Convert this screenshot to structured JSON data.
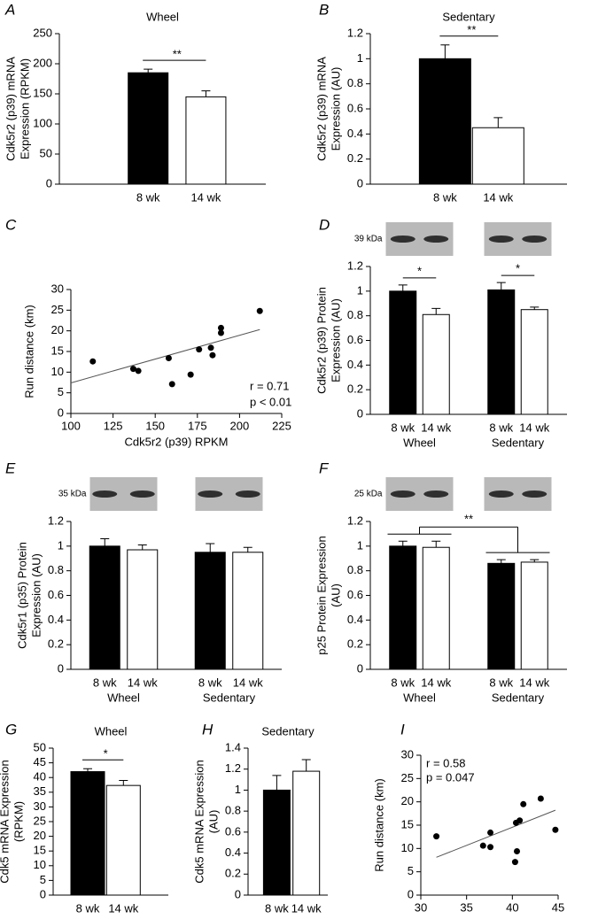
{
  "chart_data": [
    {
      "type": "bar",
      "panel": "A",
      "title": "Wheel",
      "ylabel": [
        "Cdk5r2 (p39) mRNA",
        "Expression (RPKM)"
      ],
      "categories": [
        "8 wk",
        "14 wk"
      ],
      "values": [
        185,
        145
      ],
      "errors": [
        6,
        10
      ],
      "colors": [
        "#000000",
        "#ffffff"
      ],
      "ylim": [
        0,
        250
      ],
      "yticks": [
        0,
        50,
        100,
        150,
        200,
        250
      ],
      "significance": "**"
    },
    {
      "type": "bar",
      "panel": "B",
      "title": "Sedentary",
      "ylabel": [
        "Cdk5r2 (p39) mRNA",
        "Expression (AU)"
      ],
      "categories": [
        "8 wk",
        "14 wk"
      ],
      "values": [
        1,
        0.45
      ],
      "errors": [
        0.11,
        0.08
      ],
      "colors": [
        "#000000",
        "#ffffff"
      ],
      "ylim": [
        0,
        1.2
      ],
      "yticks": [
        0,
        0.2,
        0.4,
        0.6,
        0.8,
        1,
        1.2
      ],
      "significance": "**"
    },
    {
      "type": "scatter",
      "panel": "C",
      "xlabel": "Cdk5r2 (p39) RPKM",
      "ylabel": [
        "Run distance (km)"
      ],
      "x": [
        113,
        137,
        140,
        158,
        160,
        171,
        176,
        183,
        184,
        189,
        189,
        212
      ],
      "y": [
        12.6,
        10.8,
        10.3,
        13.4,
        7.1,
        9.4,
        15.5,
        15.9,
        14.1,
        19.5,
        20.7,
        24.8
      ],
      "color": "#000000",
      "xlim": [
        100,
        225
      ],
      "xticks": [
        100,
        125,
        150,
        175,
        200,
        225
      ],
      "ylim": [
        0,
        30
      ],
      "yticks": [
        0,
        5,
        10,
        15,
        20,
        25,
        30
      ],
      "fit_line": {
        "x": [
          100,
          212
        ],
        "y": [
          7.4,
          20.3
        ]
      },
      "annotations": [
        "r = 0.71",
        "p < 0.01"
      ],
      "annotation_corner": "lower right"
    },
    {
      "type": "grouped_bar",
      "panel": "D",
      "blot_label": "39 kDa",
      "ylabel": [
        "Cdk5r2 (p39) Protein",
        "Expression (AU)"
      ],
      "categories": [
        "Wheel",
        "Sedentary"
      ],
      "series": [
        {
          "name": "8 wk",
          "color": "#000000",
          "values": [
            1,
            1.01
          ],
          "errors": [
            0.05,
            0.06
          ]
        },
        {
          "name": "14 wk",
          "color": "#ffffff",
          "values": [
            0.81,
            0.85
          ],
          "errors": [
            0.05,
            0.02
          ]
        }
      ],
      "ylim": [
        0,
        1.2
      ],
      "yticks": [
        0,
        0.2,
        0.4,
        0.6,
        0.8,
        1,
        1.2
      ],
      "significance": [
        "*",
        "*"
      ]
    },
    {
      "type": "grouped_bar",
      "panel": "E",
      "blot_label": "35 kDa",
      "ylabel": [
        "Cdk5r1 (p35) Protein",
        "Expression (AU)"
      ],
      "categories": [
        "Wheel",
        "Sedentary"
      ],
      "series": [
        {
          "name": "8 wk",
          "color": "#000000",
          "values": [
            1,
            0.95
          ],
          "errors": [
            0.06,
            0.07
          ]
        },
        {
          "name": "14 wk",
          "color": "#ffffff",
          "values": [
            0.97,
            0.95
          ],
          "errors": [
            0.04,
            0.04
          ]
        }
      ],
      "ylim": [
        0,
        1.2
      ],
      "yticks": [
        0,
        0.2,
        0.4,
        0.6,
        0.8,
        1,
        1.2
      ]
    },
    {
      "type": "grouped_bar",
      "panel": "F",
      "blot_label": "25 kDa",
      "ylabel": [
        "p25 Protein Expression",
        "(AU)"
      ],
      "categories": [
        "Wheel",
        "Sedentary"
      ],
      "series": [
        {
          "name": "8 wk",
          "color": "#000000",
          "values": [
            1,
            0.86
          ],
          "errors": [
            0.04,
            0.03
          ]
        },
        {
          "name": "14 wk",
          "color": "#ffffff",
          "values": [
            0.99,
            0.87
          ],
          "errors": [
            0.05,
            0.02
          ]
        }
      ],
      "ylim": [
        0,
        1.2
      ],
      "yticks": [
        0,
        0.2,
        0.4,
        0.6,
        0.8,
        1,
        1.2
      ],
      "significance": "**"
    },
    {
      "type": "bar",
      "panel": "G",
      "title": "Wheel",
      "ylabel": [
        "Cdk5 mRNA Expression",
        "(RPKM)"
      ],
      "categories": [
        "8 wk",
        "14 wk"
      ],
      "values": [
        42,
        37.3
      ],
      "errors": [
        1,
        1.7
      ],
      "colors": [
        "#000000",
        "#ffffff"
      ],
      "ylim": [
        0,
        50
      ],
      "yticks": [
        0,
        5,
        10,
        15,
        20,
        25,
        30,
        35,
        40,
        45,
        50
      ],
      "significance": "*"
    },
    {
      "type": "bar",
      "panel": "H",
      "title": "Sedentary",
      "ylabel": [
        "Cdk5 mRNA Expression",
        "(AU)"
      ],
      "categories": [
        "8 wk",
        "14 wk"
      ],
      "values": [
        1,
        1.18
      ],
      "errors": [
        0.14,
        0.11
      ],
      "colors": [
        "#000000",
        "#ffffff"
      ],
      "ylim": [
        0,
        1.4
      ],
      "yticks": [
        0,
        0.2,
        0.4,
        0.6,
        0.8,
        1,
        1.2,
        1.4
      ]
    },
    {
      "type": "scatter",
      "panel": "I",
      "xlabel": "Cdk5 RPKM",
      "ylabel": [
        "Run distance (km)"
      ],
      "x": [
        31.7,
        36.8,
        37.6,
        37.6,
        40.3,
        40.5,
        40.4,
        40.8,
        41.2,
        43.1,
        44.7
      ],
      "y": [
        12.6,
        10.6,
        13.4,
        10.3,
        7.1,
        9.4,
        15.5,
        16,
        19.5,
        20.7,
        14
      ],
      "color": "#000000",
      "xlim": [
        30,
        45
      ],
      "xticks": [
        30,
        35,
        40,
        45
      ],
      "ylim": [
        0,
        30
      ],
      "yticks": [
        0,
        5,
        10,
        15,
        20,
        25,
        30
      ],
      "fit_line": {
        "x": [
          31.7,
          44.7
        ],
        "y": [
          8.1,
          18.2
        ]
      },
      "annotations": [
        "r = 0.58",
        "p = 0.047"
      ],
      "annotation_corner": "upper left"
    }
  ]
}
